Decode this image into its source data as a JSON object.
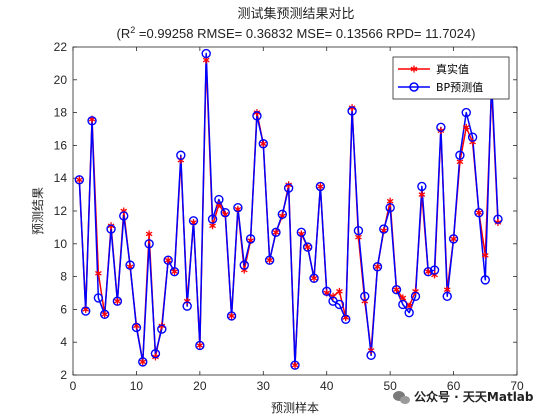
{
  "chart_data": {
    "type": "line",
    "title": "测试集预测结果对比",
    "subtitle_prefix": "(R",
    "subtitle_sup": "2",
    "subtitle_rest": " =0.99258 RMSE= 0.36832 MSE= 0.13566 RPD= 11.7024)",
    "xlabel": "预测样本",
    "ylabel": "预测结果",
    "xlim": [
      0,
      70
    ],
    "ylim": [
      2,
      22
    ],
    "xticks": [
      "0",
      "10",
      "20",
      "30",
      "40",
      "50",
      "60",
      "70"
    ],
    "yticks": [
      "2",
      "4",
      "6",
      "8",
      "10",
      "12",
      "14",
      "16",
      "18",
      "20",
      "22"
    ],
    "grid": false,
    "legend_position": "top-right",
    "x": [
      1,
      2,
      3,
      4,
      5,
      6,
      7,
      8,
      9,
      10,
      11,
      12,
      13,
      14,
      15,
      16,
      17,
      18,
      19,
      20,
      21,
      22,
      23,
      24,
      25,
      26,
      27,
      28,
      29,
      30,
      31,
      32,
      33,
      34,
      35,
      36,
      37,
      38,
      39,
      40,
      41,
      42,
      43,
      44,
      45,
      46,
      47,
      48,
      49,
      50,
      51,
      52,
      53,
      54,
      55,
      56,
      57,
      58,
      59,
      60,
      61,
      62,
      63,
      64,
      65,
      66,
      67
    ],
    "series": [
      {
        "name": "真实值",
        "color": "#ff0000",
        "marker": "asterisk",
        "values": [
          13.9,
          6.0,
          17.6,
          8.2,
          5.7,
          11.1,
          6.5,
          12.0,
          8.6,
          5.0,
          2.8,
          10.6,
          3.1,
          5.0,
          9.0,
          8.3,
          15.1,
          6.5,
          11.3,
          3.8,
          21.2,
          11.1,
          12.4,
          11.8,
          5.6,
          12.1,
          8.4,
          10.2,
          18.0,
          16.1,
          9.0,
          10.7,
          11.7,
          13.6,
          2.6,
          10.6,
          9.8,
          7.9,
          13.5,
          7.0,
          6.8,
          7.1,
          5.5,
          18.3,
          10.4,
          6.5,
          3.5,
          8.6,
          10.8,
          12.6,
          7.2,
          6.7,
          6.2,
          7.1,
          13.0,
          8.3,
          8.1,
          16.9,
          7.2,
          10.3,
          15.0,
          17.1,
          16.2,
          11.9,
          9.3,
          19.4,
          11.3
        ]
      },
      {
        "name": "BP预测值",
        "color": "#0000ff",
        "marker": "circle",
        "values": [
          13.9,
          5.9,
          17.5,
          6.7,
          5.7,
          10.9,
          6.5,
          11.7,
          8.7,
          4.9,
          2.8,
          10.0,
          3.3,
          4.8,
          9.0,
          8.3,
          15.4,
          6.2,
          11.4,
          3.8,
          21.6,
          11.5,
          12.7,
          11.9,
          5.6,
          12.2,
          8.7,
          10.3,
          17.8,
          16.1,
          9.0,
          10.7,
          11.8,
          13.4,
          2.6,
          10.7,
          9.8,
          7.9,
          13.5,
          7.1,
          6.5,
          6.3,
          5.4,
          18.1,
          10.8,
          6.8,
          3.2,
          8.6,
          10.9,
          12.2,
          7.2,
          6.3,
          5.8,
          6.8,
          13.5,
          8.3,
          8.4,
          17.1,
          6.8,
          10.3,
          15.4,
          18.0,
          16.5,
          11.9,
          7.8,
          19.9,
          11.5
        ]
      }
    ]
  },
  "watermark": {
    "icon": "wechat-icon",
    "text": "公众号 · 天天Matlab"
  }
}
